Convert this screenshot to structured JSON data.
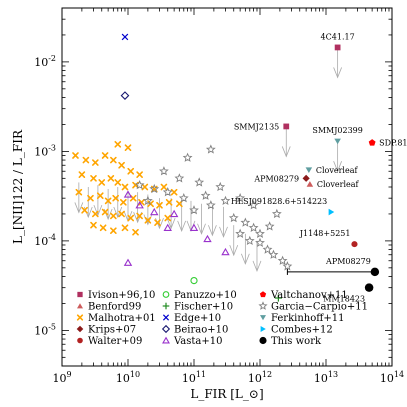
{
  "chart_data": {
    "type": "scatter",
    "xscale": "log",
    "yscale": "log",
    "xlim": [
      1000000000.0,
      100000000000000.0
    ],
    "ylim": [
      4e-06,
      0.04
    ],
    "grid": false,
    "legend_position": "bottom",
    "xlabel": "L_FIR [L_⊙]",
    "ylabel": "L_[NII]122 / L_FIR",
    "x_ticks": [
      {
        "v": 1000000000.0,
        "b": "10",
        "e": "9"
      },
      {
        "v": 10000000000.0,
        "b": "10",
        "e": "10"
      },
      {
        "v": 100000000000.0,
        "b": "10",
        "e": "11"
      },
      {
        "v": 1000000000000.0,
        "b": "10",
        "e": "12"
      },
      {
        "v": 10000000000000.0,
        "b": "10",
        "e": "13"
      },
      {
        "v": 100000000000000.0,
        "b": "10",
        "e": "14"
      }
    ],
    "y_ticks": [
      {
        "v": 1e-05,
        "b": "10",
        "e": "-5"
      },
      {
        "v": 0.0001,
        "b": "10",
        "e": "-4"
      },
      {
        "v": 0.001,
        "b": "10",
        "e": "-3"
      },
      {
        "v": 0.01,
        "b": "10",
        "e": "-2"
      }
    ],
    "series": [
      {
        "name": "Ivison+96,10",
        "marker": "square",
        "color": "#b03060",
        "points": [
          {
            "x": 15000000000000.0,
            "y": 0.0145
          },
          {
            "x": 2500000000000.0,
            "y": 0.0019
          }
        ]
      },
      {
        "name": "Benford99",
        "marker": "triangle",
        "color": "#cd5c5c",
        "points": [
          {
            "x": 5700000000000.0,
            "y": 0.00043
          }
        ]
      },
      {
        "name": "Malhotra+01",
        "marker": "cross4",
        "color": "#ffa500",
        "points": [
          {
            "x": 1600000000.0,
            "y": 0.0009
          },
          {
            "x": 2300000000.0,
            "y": 0.0008
          },
          {
            "x": 3200000000.0,
            "y": 0.00075
          },
          {
            "x": 4500000000.0,
            "y": 0.0009
          },
          {
            "x": 6000000000.0,
            "y": 0.0008
          },
          {
            "x": 8000000000.0,
            "y": 0.0007
          },
          {
            "x": 11000000000.0,
            "y": 0.0006
          },
          {
            "x": 15000000000.0,
            "y": 0.00055
          },
          {
            "x": 2000000000.0,
            "y": 0.00055
          },
          {
            "x": 3000000000.0,
            "y": 0.0005
          },
          {
            "x": 4000000000.0,
            "y": 0.00045
          },
          {
            "x": 5500000000.0,
            "y": 0.0005
          },
          {
            "x": 7000000000.0,
            "y": 0.00045
          },
          {
            "x": 9000000000.0,
            "y": 0.0004
          },
          {
            "x": 13000000000.0,
            "y": 0.00042
          },
          {
            "x": 18000000000.0,
            "y": 0.0004
          },
          {
            "x": 25000000000.0,
            "y": 0.00038
          },
          {
            "x": 35000000000.0,
            "y": 0.0004
          },
          {
            "x": 50000000000.0,
            "y": 0.00035
          },
          {
            "x": 1800000000.0,
            "y": 0.00035
          },
          {
            "x": 2700000000.0,
            "y": 0.0003
          },
          {
            "x": 3800000000.0,
            "y": 0.00032
          },
          {
            "x": 5000000000.0,
            "y": 0.00028
          },
          {
            "x": 6500000000.0,
            "y": 0.0003
          },
          {
            "x": 8500000000.0,
            "y": 0.00027
          },
          {
            "x": 12000000000.0,
            "y": 0.0003
          },
          {
            "x": 16000000000.0,
            "y": 0.00027
          },
          {
            "x": 22000000000.0,
            "y": 0.00026
          },
          {
            "x": 30000000000.0,
            "y": 0.00025
          },
          {
            "x": 42000000000.0,
            "y": 0.00027
          },
          {
            "x": 60000000000.0,
            "y": 0.00026
          },
          {
            "x": 2200000000.0,
            "y": 0.00022
          },
          {
            "x": 3200000000.0,
            "y": 0.0002
          },
          {
            "x": 4500000000.0,
            "y": 0.00021
          },
          {
            "x": 6000000000.0,
            "y": 0.00019
          },
          {
            "x": 8000000000.0,
            "y": 0.0002
          },
          {
            "x": 11000000000.0,
            "y": 0.00018
          },
          {
            "x": 15000000000.0,
            "y": 0.00019
          },
          {
            "x": 20000000000.0,
            "y": 0.00017
          },
          {
            "x": 28000000000.0,
            "y": 0.00016
          },
          {
            "x": 40000000000.0,
            "y": 0.00018
          },
          {
            "x": 3000000000.0,
            "y": 0.00015
          },
          {
            "x": 4200000000.0,
            "y": 0.00014
          },
          {
            "x": 6000000000.0,
            "y": 0.00013
          },
          {
            "x": 9000000000.0,
            "y": 0.00014
          },
          {
            "x": 13000000000.0,
            "y": 0.000125
          },
          {
            "x": 10000000000.0,
            "y": 0.0011
          },
          {
            "x": 7000000000.0,
            "y": 0.0012
          }
        ]
      },
      {
        "name": "Krips+07",
        "marker": "diamond",
        "color": "#8b1a1a",
        "points": [
          {
            "x": 5000000000000.0,
            "y": 0.0005
          }
        ]
      },
      {
        "name": "Walter+09",
        "marker": "circle",
        "color": "#b22222",
        "points": [
          {
            "x": 27000000000000.0,
            "y": 9.2e-05
          }
        ]
      },
      {
        "name": "Panuzzo+10",
        "marker": "circle-open",
        "color": "#32cd32",
        "points": [
          {
            "x": 100000000000.0,
            "y": 3.6e-05
          }
        ]
      },
      {
        "name": "Fischer+10",
        "marker": "plus",
        "color": "#228b22",
        "points": [
          {
            "x": 1900000000000.0,
            "y": 2.3e-05
          }
        ]
      },
      {
        "name": "Edge+10",
        "marker": "x",
        "color": "#0000cd",
        "points": [
          {
            "x": 9000000000.0,
            "y": 0.019
          }
        ]
      },
      {
        "name": "Beirao+10",
        "marker": "diamond-open",
        "color": "#191970",
        "points": [
          {
            "x": 9000000000.0,
            "y": 0.0042
          }
        ]
      },
      {
        "name": "Vasta+10",
        "marker": "triangle-open",
        "color": "#9932cc",
        "points": [
          {
            "x": 10000000000.0,
            "y": 0.00033
          },
          {
            "x": 15000000000.0,
            "y": 0.00025
          },
          {
            "x": 25000000000.0,
            "y": 0.00021
          },
          {
            "x": 50000000000.0,
            "y": 0.0002
          },
          {
            "x": 100000000000.0,
            "y": 0.00014
          },
          {
            "x": 160000000000.0,
            "y": 0.000105
          },
          {
            "x": 300000000000.0,
            "y": 7.5e-05
          },
          {
            "x": 10000000000.0,
            "y": 5.7e-05
          },
          {
            "x": 40000000000.0,
            "y": 0.00014
          }
        ]
      },
      {
        "name": "Valtchanov+11",
        "marker": "pentagon",
        "color": "#ff0000",
        "points": [
          {
            "x": 50000000000000.0,
            "y": 0.00125
          }
        ]
      },
      {
        "name": "Garcia−Carpio+11",
        "marker": "star-open",
        "color": "#808080",
        "points": [
          {
            "x": 80000000000.0,
            "y": 0.00085
          },
          {
            "x": 180000000000.0,
            "y": 0.00105
          },
          {
            "x": 35000000000.0,
            "y": 0.0006
          },
          {
            "x": 60000000000.0,
            "y": 0.0005
          },
          {
            "x": 120000000000.0,
            "y": 0.00045
          },
          {
            "x": 250000000000.0,
            "y": 0.0004
          },
          {
            "x": 15000000000.0,
            "y": 0.00042
          },
          {
            "x": 25000000000.0,
            "y": 0.00038
          },
          {
            "x": 40000000000.0,
            "y": 0.00035
          },
          {
            "x": 70000000000.0,
            "y": 0.0003
          },
          {
            "x": 150000000000.0,
            "y": 0.00032
          },
          {
            "x": 300000000000.0,
            "y": 0.00028
          },
          {
            "x": 500000000000.0,
            "y": 0.0003
          },
          {
            "x": 800000000000.0,
            "y": 0.00025
          },
          {
            "x": 400000000000.0,
            "y": 0.00018
          },
          {
            "x": 600000000000.0,
            "y": 0.00016
          },
          {
            "x": 800000000000.0,
            "y": 0.00014
          },
          {
            "x": 1000000000000.0,
            "y": 0.00012
          },
          {
            "x": 1400000000000.0,
            "y": 0.000145
          },
          {
            "x": 700000000000.0,
            "y": 0.0001
          },
          {
            "x": 1000000000000.0,
            "y": 9.5e-05
          },
          {
            "x": 1300000000000.0,
            "y": 8e-05
          },
          {
            "x": 1600000000000.0,
            "y": 7e-05
          },
          {
            "x": 2200000000000.0,
            "y": 6e-05
          },
          {
            "x": 2600000000000.0,
            "y": 5.2e-05
          },
          {
            "x": 1800000000000.0,
            "y": 0.0002
          },
          {
            "x": 100000000000.0,
            "y": 0.00022
          },
          {
            "x": 20000000000.0,
            "y": 0.00028
          },
          {
            "x": 180000000000.0,
            "y": 0.00025
          },
          {
            "x": 500000000000.0,
            "y": 0.00012
          }
        ]
      },
      {
        "name": "Ferkinhoff+11",
        "marker": "triangle-down",
        "color": "#5f9ea0",
        "points": [
          {
            "x": 15000000000000.0,
            "y": 0.0013
          },
          {
            "x": 5500000000000.0,
            "y": 0.00062
          }
        ]
      },
      {
        "name": "Combes+12",
        "marker": "triangle-right",
        "color": "#00bfff",
        "points": [
          {
            "x": 12000000000000.0,
            "y": 0.00021
          }
        ]
      },
      {
        "name": "This work",
        "marker": "circle",
        "color": "#000000",
        "points": [
          {
            "x": 55000000000000.0,
            "y": 4.5e-05
          },
          {
            "x": 45000000000000.0,
            "y": 3e-05
          }
        ]
      }
    ],
    "upper_limit_arrows": [
      {
        "x": 15000000000000.0,
        "y": 0.0145
      },
      {
        "x": 2500000000000.0,
        "y": 0.0019
      },
      {
        "x": 15000000000000.0,
        "y": 0.0013
      },
      {
        "x": 1800000000.0,
        "y": 0.00045
      },
      {
        "x": 2500000000.0,
        "y": 0.0004
      },
      {
        "x": 3500000000.0,
        "y": 0.00042
      },
      {
        "x": 5000000000.0,
        "y": 0.00038
      },
      {
        "x": 7000000000.0,
        "y": 0.0004
      },
      {
        "x": 10000000000.0,
        "y": 0.00036
      },
      {
        "x": 14000000000.0,
        "y": 0.00035
      },
      {
        "x": 20000000000.0,
        "y": 0.00033
      },
      {
        "x": 30000000000.0,
        "y": 0.0003
      },
      {
        "x": 45000000000.0,
        "y": 0.0003
      },
      {
        "x": 65000000000.0,
        "y": 0.00028
      },
      {
        "x": 90000000000.0,
        "y": 0.00028
      },
      {
        "x": 130000000000.0,
        "y": 0.00026
      },
      {
        "x": 190000000000.0,
        "y": 0.00025
      },
      {
        "x": 280000000000.0,
        "y": 0.00024
      },
      {
        "x": 400000000000.0,
        "y": 0.00015
      },
      {
        "x": 600000000000.0,
        "y": 0.00012
      },
      {
        "x": 900000000000.0,
        "y": 0.0001
      }
    ],
    "horizontal_errorbars": [
      {
        "y": 4.5e-05,
        "x_low": 2600000000000.0,
        "x_high": 55000000000000.0
      }
    ],
    "annotations": [
      {
        "text": "4C41.17",
        "x": 15000000000000.0,
        "y": 0.0145,
        "pos": "above"
      },
      {
        "text": "SMMJ2135",
        "x": 2500000000000.0,
        "y": 0.0019,
        "pos": "left"
      },
      {
        "text": "SMMJ02399",
        "x": 15000000000000.0,
        "y": 0.0013,
        "pos": "above"
      },
      {
        "text": "SDP.81",
        "x": 50000000000000.0,
        "y": 0.00125,
        "pos": "right"
      },
      {
        "text": "Cloverleaf",
        "x": 5500000000000.0,
        "y": 0.00062,
        "pos": "right"
      },
      {
        "text": "APM08279",
        "x": 5000000000000.0,
        "y": 0.0005,
        "pos": "left"
      },
      {
        "text": "Cloverleaf",
        "x": 5700000000000.0,
        "y": 0.00043,
        "pos": "right"
      },
      {
        "text": "HLSJ091828.6+514223",
        "x": 12000000000000.0,
        "y": 0.00021,
        "pos": "above-left"
      },
      {
        "text": "J1148+5251",
        "x": 27000000000000.0,
        "y": 9.2e-05,
        "pos": "above-left"
      },
      {
        "text": "APM08279",
        "x": 55000000000000.0,
        "y": 4.5e-05,
        "pos": "above-left"
      },
      {
        "text": "MM18423",
        "x": 45000000000000.0,
        "y": 3e-05,
        "pos": "below-left"
      }
    ]
  }
}
